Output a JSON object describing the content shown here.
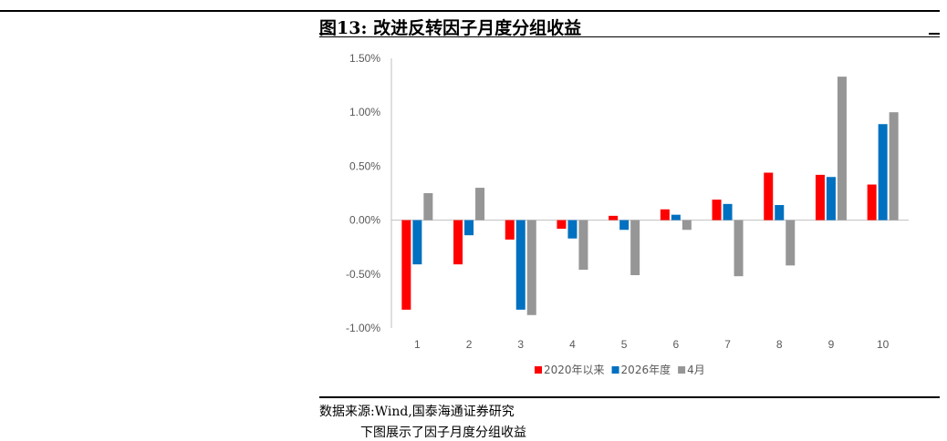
{
  "figure": {
    "title": "图13:  改进反转因子月度分组收益",
    "source": "数据来源:Wind,国泰海通证券研究",
    "cut_text": "下图展示了因子月度分组收益"
  },
  "chart_data": {
    "type": "bar",
    "categories": [
      "1",
      "2",
      "3",
      "4",
      "5",
      "6",
      "7",
      "8",
      "9",
      "10"
    ],
    "series": [
      {
        "name": "2020年以来",
        "color": "#ff0000",
        "values": [
          -0.83,
          -0.41,
          -0.18,
          -0.08,
          0.04,
          0.1,
          0.19,
          0.44,
          0.42,
          0.33
        ]
      },
      {
        "name": "2026年度",
        "color": "#0070c0",
        "values": [
          -0.41,
          -0.14,
          -0.83,
          -0.17,
          -0.09,
          0.05,
          0.15,
          0.14,
          0.4,
          0.89
        ]
      },
      {
        "name": "4月",
        "color": "#969696",
        "values": [
          0.25,
          0.3,
          -0.88,
          -0.46,
          -0.51,
          -0.09,
          -0.52,
          -0.42,
          1.33,
          1.0
        ]
      }
    ],
    "ylim": [
      -1.0,
      1.5
    ],
    "yticks": [
      "1.50%",
      "1.00%",
      "0.50%",
      "0.00%",
      "-0.50%",
      "-1.00%"
    ],
    "ytick_values": [
      1.5,
      1.0,
      0.5,
      0.0,
      -0.5,
      -1.0
    ],
    "grid": false,
    "legend_position": "bottom"
  }
}
